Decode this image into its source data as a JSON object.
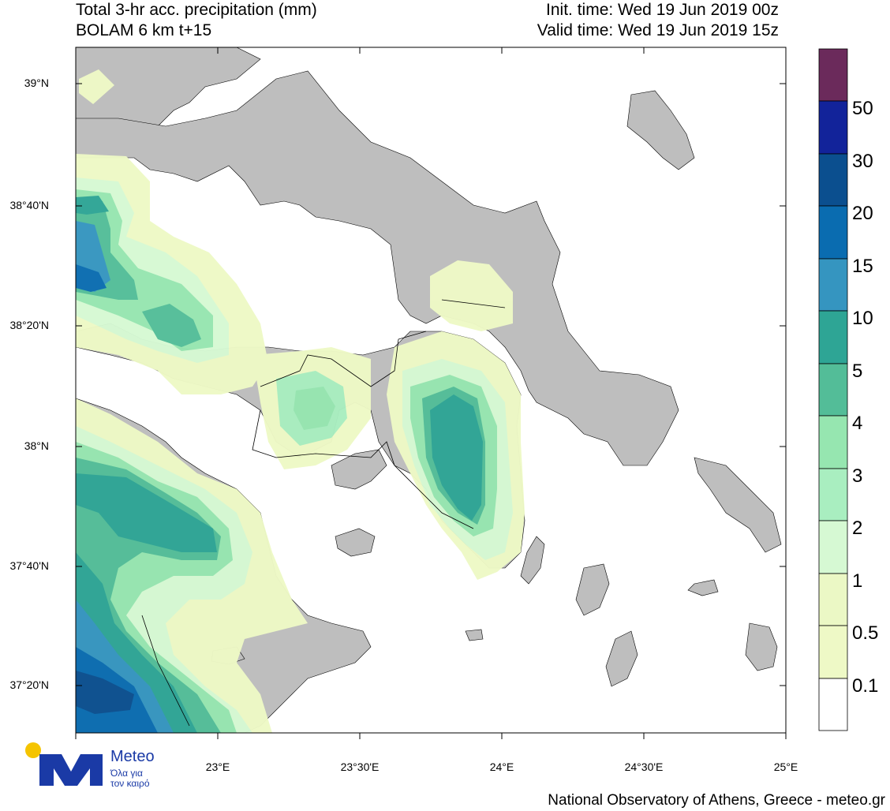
{
  "header": {
    "title_line1": "Total 3-hr acc. precipitation (mm)",
    "title_line2": "BOLAM 6 km t+15",
    "init_time": "Init. time: Wed 19 Jun 2019 00z",
    "valid_time": "Valid time: Wed 19 Jun 2019 15z"
  },
  "map": {
    "lat_labels": [
      "39°N",
      "38°40'N",
      "38°20'N",
      "38°N",
      "37°40'N",
      "37°20'N"
    ],
    "lon_labels": [
      "23°E",
      "23°30'E",
      "24°E",
      "24°30'E",
      "25°E"
    ],
    "land_color": "#bebebe",
    "sea_color": "#ffffff"
  },
  "colorbar": {
    "labels": [
      "50",
      "30",
      "20",
      "15",
      "10",
      "5",
      "4",
      "3",
      "2",
      "1",
      "0.5",
      "0.1"
    ],
    "colors": [
      "#6b2a5b",
      "#12239a",
      "#0b4f8f",
      "#0a6cb0",
      "#3595c0",
      "#2ea595",
      "#53bd98",
      "#96e6b0",
      "#a9eec0",
      "#d6f9d3",
      "#ebf8c5",
      "#eef9c6",
      "#ffffff"
    ]
  },
  "footer": {
    "credit": "National Observatory of Athens, Greece - meteo.gr"
  },
  "logo": {
    "name": "Meteo",
    "tagline_1": "Όλα για",
    "tagline_2": "τον καιρό"
  }
}
